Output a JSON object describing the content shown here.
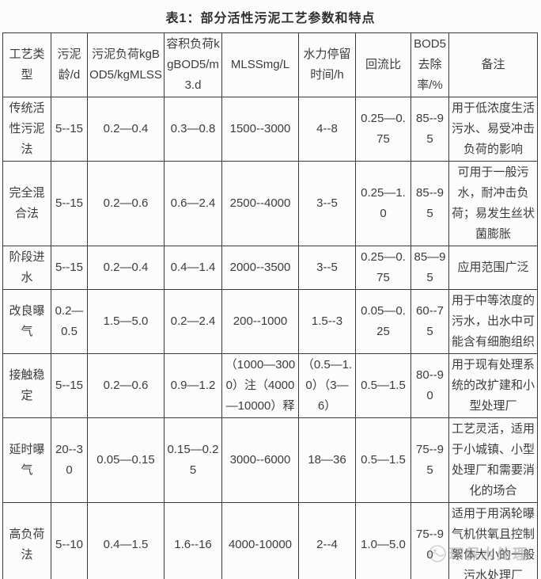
{
  "title": "表1：部分活性污泥工艺参数和特点",
  "table": {
    "headers": [
      "工艺类型",
      "污泥龄/d",
      "污泥负荷kgBOD5/kgMLSS",
      "容积负荷kgBOD5/m3.d",
      "MLSSmg/L",
      "水力停留时间/h",
      "回流比",
      "BOD5去除率/%",
      "备注"
    ],
    "rows": [
      [
        "传统活性污泥法",
        "5--15",
        "0.2—0.4",
        "0.3—0.8",
        "1500--3000",
        "4--8",
        "0.25—0.75",
        "85--95",
        "用于低浓度生活污水、易受冲击负荷的影响"
      ],
      [
        "完全混合法",
        "5--15",
        "0.2—0.6",
        "0.6—2.4",
        "2500--4000",
        "3--5",
        "0.25—1.0",
        "85--95",
        "可用于一般污水，耐冲击负荷；易发生丝状菌膨胀"
      ],
      [
        "阶段进水",
        "5--15",
        "0.2—0.4",
        "0.4—1.4",
        "2000--3500",
        "3--5",
        "0.25—0.75",
        "85—95",
        "应用范围广泛"
      ],
      [
        "改良曝气",
        "0.2—0.5",
        "1.5—5.0",
        "0.2—2.4",
        "200--1000",
        "1.5--3",
        "0.05—0.25",
        "60--75",
        "用于中等浓度的污水，出水中可能含有细胞组织"
      ],
      [
        "接触稳定",
        "5--15",
        "0.2—0.6",
        "0.9—1.2",
        "（1000—3000）注（4000—10000）释",
        "（0.5—1.0）（3—6）",
        "0.5—1.5",
        "80--90",
        "用于现有处理系统的改扩建和小型处理厂"
      ],
      [
        "延时曝气",
        "20--30",
        "0.05—0.15",
        "0.15—0.25",
        "3000--6000",
        "18—36",
        "0.5—1.5",
        "75--95",
        "工艺灵活，适用于小城镇、小型处理厂和需要消化的场合"
      ],
      [
        "高负荷法",
        "5--10",
        "0.4—1.5",
        "1.6--16",
        "4000-10000",
        "2--4",
        "1.0—5.0",
        "75--90",
        "适用于用涡轮曝气机供氧且控制絮体大小的一般污水处理厂"
      ]
    ]
  },
  "watermark": {
    "text": "环保水处理"
  },
  "colors": {
    "background": "#fcfcfc",
    "border": "#3a3a3a",
    "text": "#3c3c3c",
    "watermark": "#8f8f8f"
  }
}
